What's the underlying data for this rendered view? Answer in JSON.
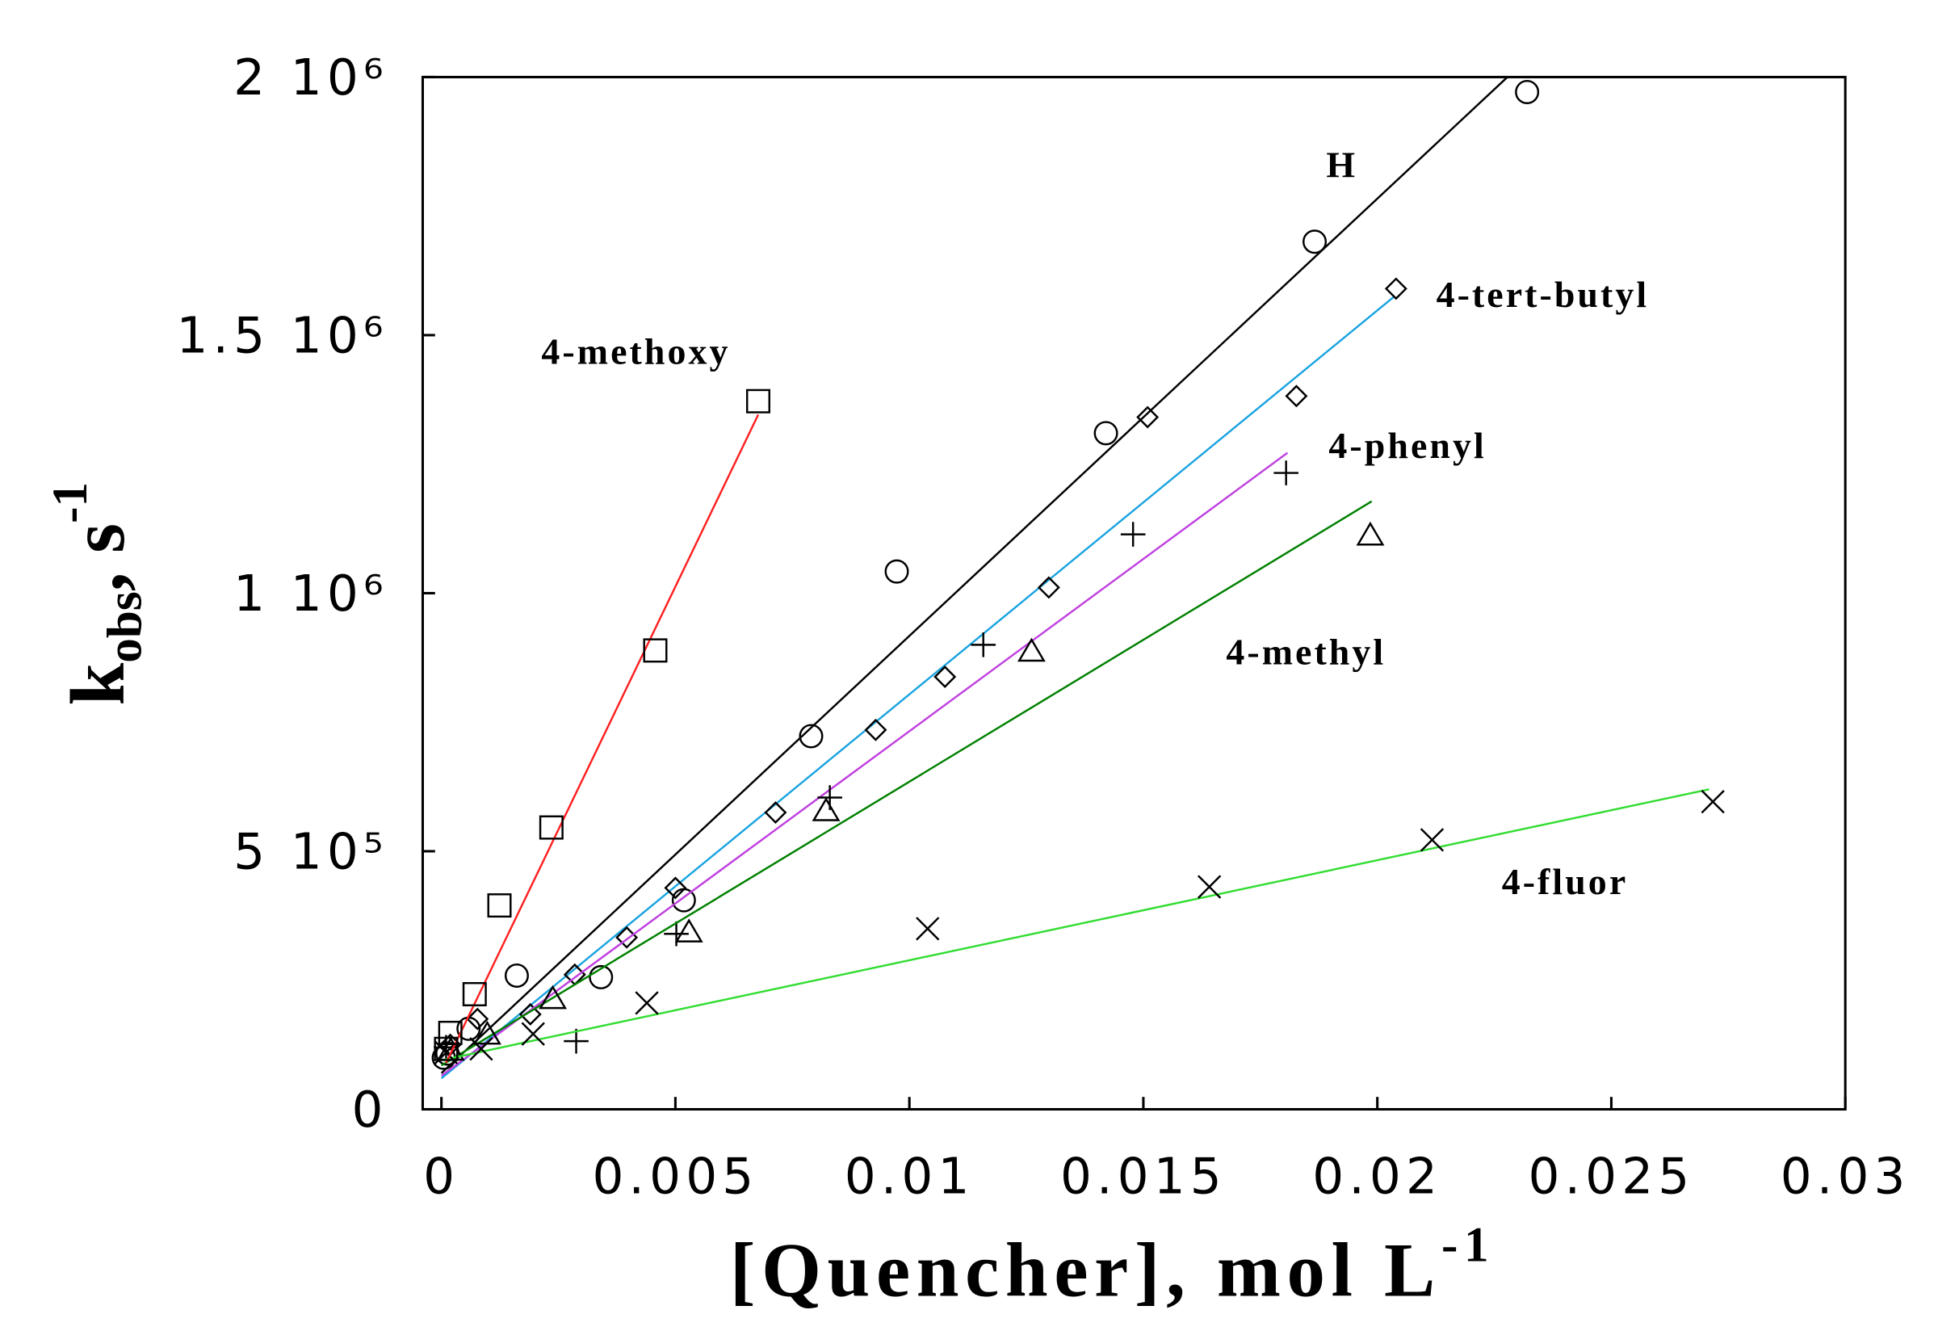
{
  "chart_data": {
    "type": "scatter",
    "xlabel": {
      "text": "[Quencher], mol L",
      "sup": "-1"
    },
    "ylabel": {
      "base": "k",
      "sub": "obs",
      "text": ", s",
      "sup": "-1"
    },
    "xlim": [
      -0.0004,
      0.03
    ],
    "ylim": [
      0,
      2000000
    ],
    "xticks": [
      0,
      0.005,
      0.01,
      0.015,
      0.02,
      0.025,
      0.03
    ],
    "yticks": [
      0,
      {
        "value": 500000,
        "label": "5 10⁵"
      },
      {
        "value": 1000000,
        "label": "1 10⁶"
      },
      {
        "value": 1500000,
        "label": "1.5 10⁶"
      },
      {
        "value": 2000000,
        "label": "2 10⁶"
      }
    ],
    "series": [
      {
        "name": "H",
        "marker": "circle",
        "color": "#000000",
        "x": [
          0.0232,
          0.01866,
          0.0142,
          0.00973,
          0.0079,
          0.00518,
          0.00341,
          0.00161,
          0.00058,
          0.00013,
          5e-05
        ],
        "values": [
          1971000,
          1681000,
          1310000,
          1042000,
          723000,
          405000,
          256000,
          259000,
          156000,
          108000,
          100000
        ],
        "fit": {
          "x": [
            0,
            0.02278
          ],
          "y": [
            70000,
            2000000
          ]
        }
      },
      {
        "name": "4-tert-butyl",
        "marker": "diamond",
        "color": "#1aa3e0",
        "x": [
          0.0204,
          0.01827,
          0.01509,
          0.01298,
          0.01076,
          0.00928,
          0.00714,
          0.005,
          0.00396,
          0.00285,
          0.0019,
          0.00077,
          0.00019
        ],
        "values": [
          1590000,
          1382000,
          1341000,
          1011000,
          838000,
          735000,
          575000,
          429000,
          333000,
          261000,
          184000,
          175000,
          125000
        ],
        "fit": {
          "x": [
            0,
            0.02035
          ],
          "y": [
            60000,
            1574000
          ]
        }
      },
      {
        "name": "4-phenyl",
        "marker": "plus",
        "color": "#c040e0",
        "x": [
          0.01805,
          0.01478,
          0.01158,
          0.0083,
          0.00502,
          0.00288,
          0.0001
        ],
        "values": [
          1233000,
          1114000,
          900000,
          604000,
          340000,
          132000,
          120000
        ],
        "fit": {
          "x": [
            0,
            0.01808
          ],
          "y": [
            65000,
            1272000
          ]
        }
      },
      {
        "name": "4-methyl",
        "marker": "triangle",
        "color": "#008000",
        "x": [
          0.01985,
          0.01261,
          0.00822,
          0.00529,
          0.00238,
          0.00098,
          0.0002
        ],
        "values": [
          1111000,
          886000,
          577000,
          342000,
          213000,
          144000,
          113000
        ],
        "fit": {
          "x": [
            0,
            0.01988
          ],
          "y": [
            85000,
            1178000
          ]
        }
      },
      {
        "name": "4-fluor",
        "marker": "x",
        "color": "#33dd33",
        "x": [
          0.02717,
          0.02117,
          0.01641,
          0.01039,
          0.00439,
          0.00196,
          0.00085,
          0.0001
        ],
        "values": [
          596000,
          522000,
          431000,
          350000,
          206000,
          146000,
          117000,
          110000
        ],
        "fit": {
          "x": [
            0,
            0.02709
          ],
          "y": [
            95000,
            620000
          ]
        }
      },
      {
        "name": "4-methoxy",
        "marker": "square",
        "color": "#ff2020",
        "x": [
          0.00677,
          0.00457,
          0.00235,
          0.00124,
          0.00071,
          0.00019,
          0.0001
        ],
        "values": [
          1372000,
          889000,
          546000,
          395000,
          223000,
          148000,
          117000
        ],
        "fit": {
          "x": [
            0.0001,
            0.00677
          ],
          "y": [
            90000,
            1346000
          ]
        }
      }
    ]
  }
}
